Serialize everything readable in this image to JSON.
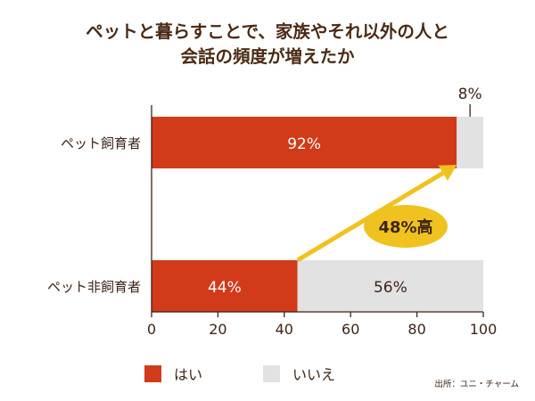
{
  "title_lines": [
    "ペットと暮らすことで、家族やそれ以外の人と",
    "会話の頻度が増えたか"
  ],
  "colors": {
    "yes": "#d13b1a",
    "no": "#e2e2e2",
    "arrow": "#f0c21f",
    "badge": "#f0c21f",
    "text": "#3d2417",
    "bar_label": "#ffffff"
  },
  "chart_data": {
    "type": "bar",
    "orientation": "horizontal",
    "stacked": true,
    "title": "ペットと暮らすことで、家族やそれ以外の人と会話の頻度が増えたか",
    "categories": [
      "ペット飼育者",
      "ペット非飼育者"
    ],
    "series": [
      {
        "name": "はい",
        "values": [
          92,
          44
        ],
        "labels": [
          "92%",
          "44%"
        ]
      },
      {
        "name": "いいえ",
        "values": [
          8,
          56
        ],
        "labels": [
          "8%",
          "56%"
        ]
      }
    ],
    "xlim": [
      0,
      100
    ],
    "xticks": [
      0,
      20,
      40,
      60,
      80,
      100
    ],
    "grid": false,
    "legend_position": "bottom",
    "annotation": {
      "text": "48%高",
      "from_value": 44,
      "to_value": 92
    }
  },
  "source": "出所：ユニ・チャーム"
}
